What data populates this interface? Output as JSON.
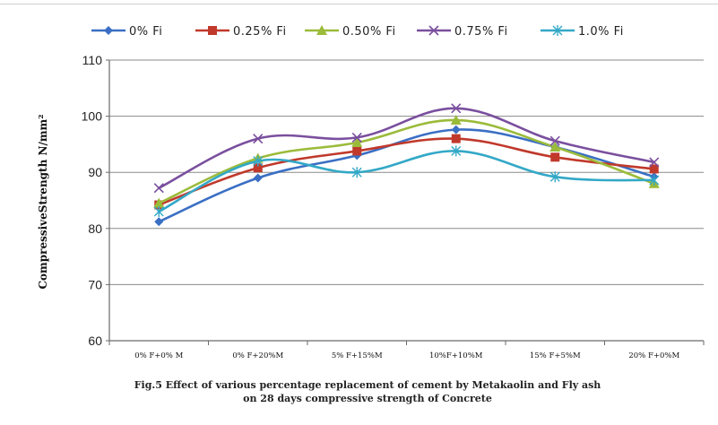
{
  "chart_data": {
    "type": "line",
    "title": "",
    "xlabel": "",
    "ylabel": "CompressiveStrength N/mm²",
    "ylim": [
      60,
      110
    ],
    "yticks": [
      60,
      70,
      80,
      90,
      100,
      110
    ],
    "grid": "horizontal",
    "legend_position": "top",
    "categories": [
      "0% F+0% M",
      "0% F+20%M",
      "5% F+15%M",
      "10%F+10%M",
      "15% F+5%M",
      "20% F+0%M"
    ],
    "series": [
      {
        "name": "0% Fi",
        "color": "#3a6fc4",
        "marker": "diamond",
        "values": [
          81.2,
          89.0,
          93.0,
          97.6,
          94.5,
          89.2
        ]
      },
      {
        "name": "0.25% Fi",
        "color": "#c0392b",
        "marker": "square",
        "values": [
          84.2,
          90.8,
          93.8,
          96.0,
          92.7,
          90.6
        ]
      },
      {
        "name": "0.50% Fi",
        "color": "#9bbb3a",
        "marker": "triangle",
        "values": [
          84.5,
          92.5,
          95.3,
          99.3,
          94.5,
          88.0
        ]
      },
      {
        "name": "0.75% Fi",
        "color": "#7a4f9e",
        "marker": "x",
        "values": [
          87.2,
          96.0,
          96.2,
          101.4,
          95.6,
          91.8
        ]
      },
      {
        "name": "1.0% Fi",
        "color": "#33a8c7",
        "marker": "star",
        "values": [
          83.0,
          92.0,
          90.0,
          93.8,
          89.2,
          88.6
        ]
      }
    ]
  },
  "caption": {
    "line1": "Fig.5 Effect of various percentage replacement of cement by Metakaolin and Fly ash",
    "line2": "on 28 days compressive strength of Concrete"
  }
}
